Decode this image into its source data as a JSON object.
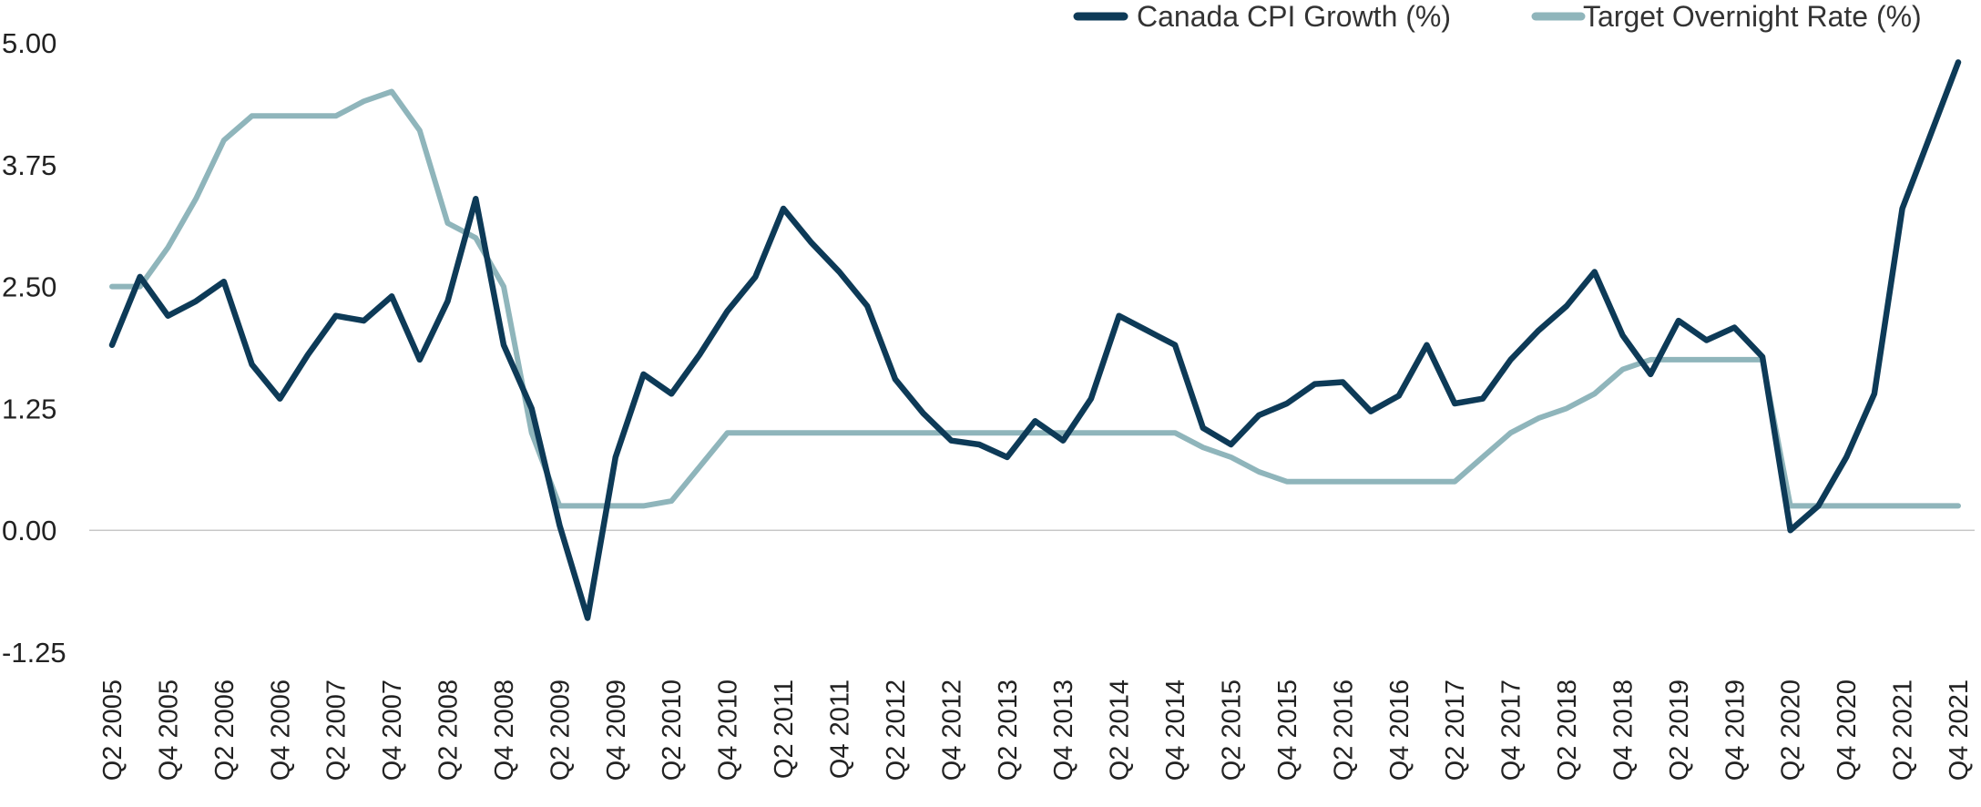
{
  "chart_data": {
    "type": "line",
    "ylim": [
      -1.25,
      5.0
    ],
    "yticks": [
      "5.00",
      "3.75",
      "2.50",
      "1.25",
      "0.00",
      "-1.25"
    ],
    "ytick_values": [
      5.0,
      3.75,
      2.5,
      1.25,
      0.0,
      -1.25
    ],
    "x": [
      "Q2 2005",
      "Q3 2005",
      "Q4 2005",
      "Q1 2006",
      "Q2 2006",
      "Q3 2006",
      "Q4 2006",
      "Q1 2007",
      "Q2 2007",
      "Q3 2007",
      "Q4 2007",
      "Q1 2008",
      "Q2 2008",
      "Q3 2008",
      "Q4 2008",
      "Q1 2009",
      "Q2 2009",
      "Q3 2009",
      "Q4 2009",
      "Q1 2010",
      "Q2 2010",
      "Q3 2010",
      "Q4 2010",
      "Q1 2011",
      "Q2 2011",
      "Q3 2011",
      "Q4 2011",
      "Q1 2012",
      "Q2 2012",
      "Q3 2012",
      "Q4 2012",
      "Q1 2013",
      "Q2 2013",
      "Q3 2013",
      "Q4 2013",
      "Q1 2014",
      "Q2 2014",
      "Q3 2014",
      "Q4 2014",
      "Q1 2015",
      "Q2 2015",
      "Q3 2015",
      "Q4 2015",
      "Q1 2016",
      "Q2 2016",
      "Q3 2016",
      "Q4 2016",
      "Q1 2017",
      "Q2 2017",
      "Q3 2017",
      "Q4 2017",
      "Q1 2018",
      "Q2 2018",
      "Q3 2018",
      "Q4 2018",
      "Q1 2019",
      "Q2 2019",
      "Q3 2019",
      "Q4 2019",
      "Q1 2020",
      "Q2 2020",
      "Q3 2020",
      "Q4 2020",
      "Q1 2021",
      "Q2 2021",
      "Q3 2021",
      "Q4 2021"
    ],
    "xtick_labels": [
      "Q2 2005",
      "Q4 2005",
      "Q2 2006",
      "Q4 2006",
      "Q2 2007",
      "Q4 2007",
      "Q2 2008",
      "Q4 2008",
      "Q2 2009",
      "Q4 2009",
      "Q2 2010",
      "Q4 2010",
      "Q2 2011",
      "Q4 2011",
      "Q2 2012",
      "Q4 2012",
      "Q2 2013",
      "Q4 2013",
      "Q2 2014",
      "Q4 2014",
      "Q2 2015",
      "Q4 2015",
      "Q2 2016",
      "Q4 2016",
      "Q2 2017",
      "Q4 2017",
      "Q2 2018",
      "Q4 2018",
      "Q2 2019",
      "Q4 2019",
      "Q2 2020",
      "Q4 2020",
      "Q2 2021",
      "Q4 2021"
    ],
    "series": [
      {
        "name": "Canada CPI Growth (%)",
        "color": "#0d3a57",
        "values": [
          1.9,
          2.6,
          2.2,
          2.35,
          2.55,
          1.7,
          1.35,
          1.8,
          2.2,
          2.15,
          2.4,
          1.75,
          2.35,
          3.4,
          1.9,
          1.25,
          0.05,
          -0.9,
          0.75,
          1.6,
          1.4,
          1.8,
          2.25,
          2.6,
          3.3,
          2.95,
          2.65,
          2.3,
          1.55,
          1.2,
          0.92,
          0.88,
          0.75,
          1.12,
          0.92,
          1.35,
          2.2,
          2.05,
          1.9,
          1.05,
          0.88,
          1.18,
          1.3,
          1.5,
          1.52,
          1.22,
          1.38,
          1.9,
          1.3,
          1.35,
          1.75,
          2.05,
          2.3,
          2.65,
          2.0,
          1.6,
          2.15,
          1.95,
          2.08,
          1.78,
          0.0,
          0.25,
          0.75,
          1.4,
          3.3,
          4.05,
          4.8
        ]
      },
      {
        "name": "Target Overnight Rate (%)",
        "color": "#8fb5bb",
        "values": [
          2.5,
          2.5,
          2.9,
          3.4,
          4.0,
          4.25,
          4.25,
          4.25,
          4.25,
          4.4,
          4.5,
          4.1,
          3.15,
          3.0,
          2.5,
          1.0,
          0.25,
          0.25,
          0.25,
          0.25,
          0.3,
          0.65,
          1.0,
          1.0,
          1.0,
          1.0,
          1.0,
          1.0,
          1.0,
          1.0,
          1.0,
          1.0,
          1.0,
          1.0,
          1.0,
          1.0,
          1.0,
          1.0,
          1.0,
          0.85,
          0.75,
          0.6,
          0.5,
          0.5,
          0.5,
          0.5,
          0.5,
          0.5,
          0.5,
          0.75,
          1.0,
          1.15,
          1.25,
          1.4,
          1.65,
          1.75,
          1.75,
          1.75,
          1.75,
          1.75,
          0.25,
          0.25,
          0.25,
          0.25,
          0.25,
          0.25,
          0.25
        ]
      }
    ],
    "legend_position": "top-right",
    "grid": false,
    "zero_line": true
  }
}
